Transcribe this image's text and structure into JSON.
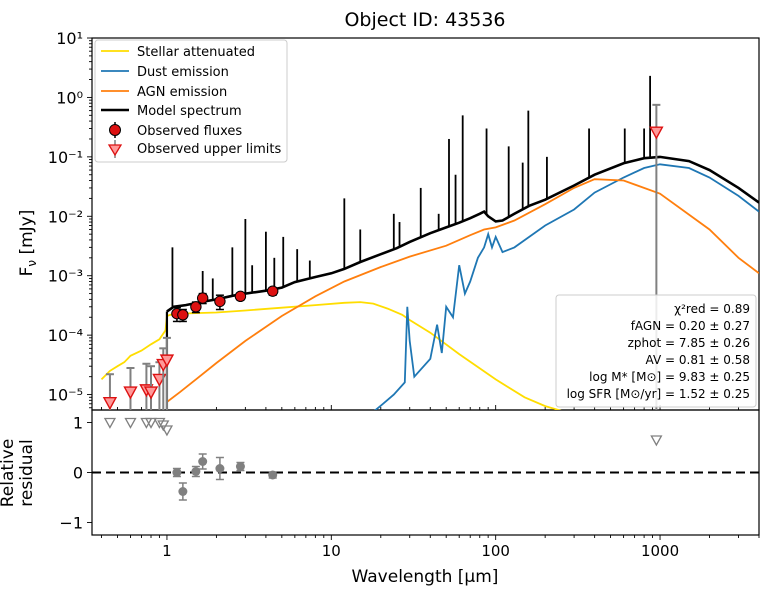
{
  "chart_data": {
    "type": "line",
    "title": "Object ID: 43536",
    "xlabel": "Wavelength [μm]",
    "x_scale": "log",
    "xlim": [
      0.35,
      4000
    ],
    "x_ticks": [
      1,
      10,
      100,
      1000
    ],
    "x_tick_labels": [
      "1",
      "10",
      "100",
      "1000"
    ],
    "top_panel": {
      "ylabel": "Fν [mJy]",
      "y_scale": "log",
      "ylim": [
        5.5e-06,
        10
      ],
      "y_ticks": [
        1e-05,
        0.0001,
        0.001,
        0.01,
        0.1,
        1,
        10
      ],
      "y_tick_labels": [
        "10⁻⁵",
        "10⁻⁴",
        "10⁻³",
        "10⁻²",
        "10⁻¹",
        "10⁰",
        "10¹"
      ],
      "legend": {
        "placement": "upper-left",
        "entries": [
          "Stellar attenuated",
          "Dust emission",
          "AGN emission",
          "Model spectrum",
          "Observed fluxes",
          "Observed upper limits"
        ]
      },
      "series": [
        {
          "name": "Stellar attenuated",
          "color": "#ffdd00",
          "x": [
            0.4,
            0.45,
            0.5,
            0.55,
            0.6,
            0.7,
            0.8,
            0.9,
            0.98,
            1.0,
            1.05,
            1.2,
            1.5,
            2.0,
            3.0,
            5.0,
            8.0,
            12.0,
            15.0,
            18.0,
            22.0,
            27.0,
            30.0,
            40.0,
            60.0,
            100.0,
            150.0,
            200.0,
            300.0
          ],
          "y": [
            1.8e-05,
            2.5e-05,
            3e-05,
            3.5e-05,
            4.5e-05,
            5.5e-05,
            7e-05,
            8.5e-05,
            0.00012,
            0.00021,
            0.00022,
            0.00023,
            0.000235,
            0.00024,
            0.00026,
            0.00029,
            0.00032,
            0.00035,
            0.00036,
            0.00034,
            0.00028,
            0.00022,
            0.00018,
            0.00011,
            4.8e-05,
            1.8e-05,
            9e-06,
            6.4e-06,
            4.6e-06
          ]
        },
        {
          "name": "Dust emission",
          "color": "#1f77b4",
          "x": [
            17.0,
            20.0,
            24.0,
            28.0,
            29.0,
            30.0,
            32.0,
            40.0,
            44.0,
            47.0,
            50.0,
            55.0,
            60.0,
            65.0,
            70.0,
            78.0,
            85.0,
            90.0,
            95.0,
            100.0,
            110.0,
            130.0,
            160.0,
            200.0,
            300.0,
            400.0,
            600.0,
            800.0,
            1000.0,
            1500.0,
            2000.0,
            3000.0,
            4000.0
          ],
          "y": [
            4.5e-06,
            6.5e-06,
            1e-05,
            1.6e-05,
            0.0003,
            8e-05,
            2e-05,
            4e-05,
            0.00015,
            5e-05,
            0.0003,
            0.0002,
            0.0015,
            0.0005,
            0.0008,
            0.002,
            0.003,
            0.005,
            0.003,
            0.0045,
            0.0025,
            0.003,
            0.0045,
            0.007,
            0.013,
            0.025,
            0.045,
            0.065,
            0.075,
            0.065,
            0.045,
            0.022,
            0.012
          ]
        },
        {
          "name": "AGN emission",
          "color": "#ff7f0e",
          "x": [
            1.0,
            1.2,
            1.5,
            2.0,
            3.0,
            5.0,
            8.0,
            12.0,
            20.0,
            30.0,
            50.0,
            70.0,
            85.0,
            100.0,
            130.0,
            200.0,
            300.0,
            400.0,
            600.0,
            1000.0,
            2000.0,
            3000.0,
            4000.0
          ],
          "y": [
            7.5e-06,
            1.1e-05,
            1.8e-05,
            3.4e-05,
            8e-05,
            0.00021,
            0.00045,
            0.0008,
            0.0014,
            0.0021,
            0.0032,
            0.0048,
            0.006,
            0.0065,
            0.0085,
            0.016,
            0.03,
            0.042,
            0.04,
            0.024,
            0.006,
            0.002,
            0.0011
          ]
        },
        {
          "name": "Model spectrum",
          "color": "#000000",
          "x": [
            1.0,
            1.1,
            1.3,
            1.6,
            2.0,
            2.5,
            3.0,
            4.0,
            5.0,
            6.0,
            8.0,
            10.0,
            12.0,
            15.0,
            20.0,
            25.0,
            30.0,
            40.0,
            50.0,
            60.0,
            70.0,
            80.0,
            85.0,
            90.0,
            100.0,
            110.0,
            130.0,
            160.0,
            200.0,
            300.0,
            400.0,
            600.0,
            800.0,
            1000.0,
            1500.0,
            2000.0,
            3000.0,
            4000.0
          ],
          "y": [
            0.00025,
            0.0003,
            0.00032,
            0.00036,
            0.0004,
            0.00046,
            0.0005,
            0.00056,
            0.00063,
            0.00078,
            0.00095,
            0.0011,
            0.0013,
            0.0017,
            0.0023,
            0.0029,
            0.0037,
            0.0052,
            0.0065,
            0.0078,
            0.0093,
            0.011,
            0.012,
            0.01,
            0.0082,
            0.0085,
            0.011,
            0.015,
            0.019,
            0.033,
            0.05,
            0.078,
            0.095,
            0.1,
            0.085,
            0.06,
            0.03,
            0.017
          ]
        }
      ],
      "emission_lines": [
        {
          "x": 1.08,
          "y": 0.003
        },
        {
          "x": 1.65,
          "y": 0.0012
        },
        {
          "x": 1.9,
          "y": 0.0009
        },
        {
          "x": 2.5,
          "y": 0.003
        },
        {
          "x": 3.0,
          "y": 0.009
        },
        {
          "x": 3.3,
          "y": 0.0015
        },
        {
          "x": 4.0,
          "y": 0.0055
        },
        {
          "x": 4.5,
          "y": 0.002
        },
        {
          "x": 5.1,
          "y": 0.0045
        },
        {
          "x": 6.2,
          "y": 0.0028
        },
        {
          "x": 7.4,
          "y": 0.0018
        },
        {
          "x": 12.0,
          "y": 0.02
        },
        {
          "x": 15.0,
          "y": 0.006
        },
        {
          "x": 24.0,
          "y": 0.011
        },
        {
          "x": 26.0,
          "y": 0.008
        },
        {
          "x": 35.0,
          "y": 0.03
        },
        {
          "x": 45.0,
          "y": 0.011
        },
        {
          "x": 52.0,
          "y": 0.2
        },
        {
          "x": 57.0,
          "y": 0.05
        },
        {
          "x": 63.0,
          "y": 0.5
        },
        {
          "x": 88.0,
          "y": 0.3
        },
        {
          "x": 120.0,
          "y": 0.15
        },
        {
          "x": 146.0,
          "y": 0.08
        },
        {
          "x": 158.0,
          "y": 0.6
        },
        {
          "x": 205.0,
          "y": 0.1
        },
        {
          "x": 370.0,
          "y": 0.3
        },
        {
          "x": 610.0,
          "y": 0.3
        },
        {
          "x": 800.0,
          "y": 0.3
        },
        {
          "x": 870.0,
          "y": 2.3
        }
      ],
      "observed_fluxes": {
        "name": "Observed fluxes",
        "color": "#dd1111",
        "x": [
          1.15,
          1.25,
          1.5,
          1.65,
          2.1,
          2.8,
          4.4
        ],
        "y": [
          0.00023,
          0.00022,
          0.0003,
          0.00042,
          0.00037,
          0.00045,
          0.00055
        ],
        "yerr": [
          6e-05,
          5e-05,
          6e-05,
          8e-05,
          0.0001,
          6e-05,
          8e-05
        ]
      },
      "upper_limits": {
        "name": "Observed upper limits",
        "color": "#dd1111",
        "x": [
          0.45,
          0.6,
          0.75,
          0.8,
          0.9,
          0.95,
          1.0,
          950.0
        ],
        "y": [
          7.3e-06,
          1.1e-05,
          1.2e-05,
          1.1e-05,
          1.8e-05,
          3.2e-05,
          3.8e-05,
          0.26
        ],
        "upper": [
          2.2e-05,
          2.8e-05,
          3.3e-05,
          3e-05,
          3.5e-05,
          6e-05,
          9e-05,
          0.75
        ]
      },
      "annotations": [
        "χ²red = 0.89",
        "fAGN = 0.20 ± 0.27",
        "zphot = 7.85 ± 0.26",
        "AV = 0.81 ± 0.58",
        "log M* [M⊙] = 9.83 ± 0.25",
        "log SFR [M⊙/yr] = 1.52 ± 0.25"
      ]
    },
    "bottom_panel": {
      "ylabel": "Relative residual",
      "ylim": [
        -1.25,
        1.25
      ],
      "y_ticks": [
        -1,
        0,
        1
      ],
      "y_tick_labels": [
        "−1",
        "0",
        "1"
      ],
      "zero_line": true,
      "residuals": {
        "color": "#808080",
        "x": [
          1.15,
          1.25,
          1.5,
          1.65,
          2.1,
          2.8,
          4.4
        ],
        "y": [
          0.0,
          -0.38,
          0.02,
          0.22,
          0.08,
          0.12,
          -0.05
        ],
        "yerr": [
          0.08,
          0.17,
          0.1,
          0.15,
          0.22,
          0.08,
          0.06
        ]
      },
      "upper_limit_residuals": {
        "color": "#808080",
        "x": [
          0.45,
          0.6,
          0.75,
          0.8,
          0.9,
          0.95,
          1.0,
          950.0
        ],
        "y": [
          1.0,
          1.0,
          1.0,
          1.0,
          1.0,
          0.95,
          0.85,
          0.65
        ]
      }
    }
  }
}
